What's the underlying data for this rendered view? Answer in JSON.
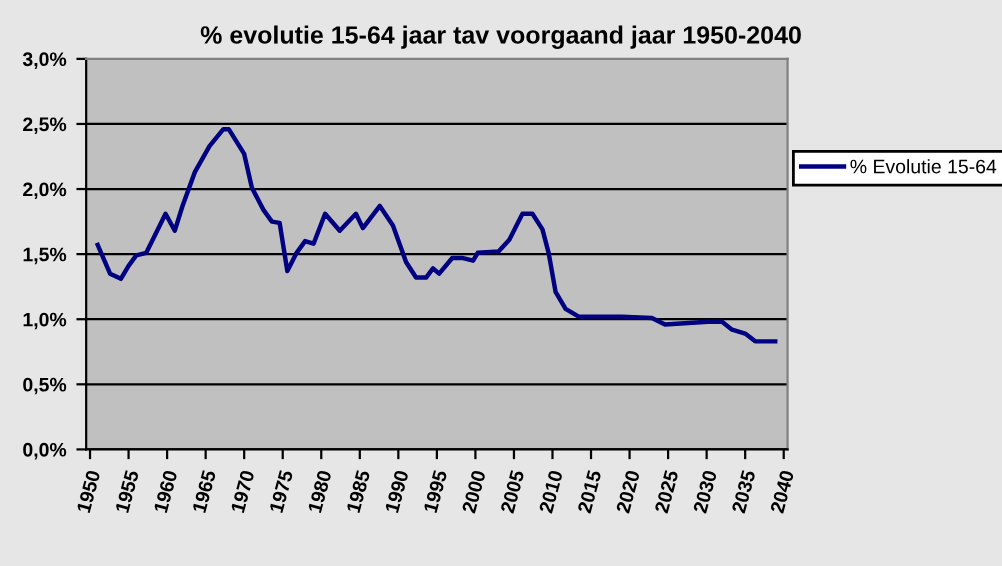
{
  "chart_data": {
    "type": "line",
    "title": "% evolutie 15-64 jaar tav voorgaand jaar 1950-2040",
    "x": [
      1951,
      1952.6,
      1954,
      1955,
      1956,
      1957.3,
      1959.8,
      1961,
      1962,
      1963.6,
      1965.5,
      1967.3,
      1968,
      1970,
      1971,
      1972.5,
      1973.6,
      1974.6,
      1975.6,
      1976.8,
      1977.9,
      1979,
      1980.5,
      1982.4,
      1984.5,
      1985.4,
      1987.6,
      1989.3,
      1991,
      1992.3,
      1993.6,
      1994.5,
      1995.3,
      1997,
      1998.4,
      1999.7,
      2000.3,
      2003,
      2004.4,
      2006.1,
      2007.4,
      2008.7,
      2009.5,
      2010.4,
      2011.7,
      2013.4,
      2019,
      2022.9,
      2024.6,
      2030.2,
      2032,
      2033.3,
      2035,
      2036.3,
      2038.9
    ],
    "series": [
      {
        "name": "% Evolutie 15-64",
        "color": "#000080",
        "values": [
          1.57,
          1.35,
          1.31,
          1.41,
          1.49,
          1.51,
          1.81,
          1.68,
          1.87,
          2.13,
          2.33,
          2.46,
          2.46,
          2.27,
          2.01,
          1.84,
          1.75,
          1.74,
          1.37,
          1.51,
          1.6,
          1.58,
          1.81,
          1.68,
          1.81,
          1.7,
          1.87,
          1.72,
          1.44,
          1.32,
          1.32,
          1.39,
          1.35,
          1.47,
          1.47,
          1.45,
          1.51,
          1.52,
          1.61,
          1.81,
          1.81,
          1.69,
          1.51,
          1.21,
          1.08,
          1.02,
          1.02,
          1.01,
          0.96,
          0.98,
          0.98,
          0.92,
          0.89,
          0.83,
          0.83
        ]
      }
    ],
    "xlim": [
      1949.5,
      2040.5
    ],
    "xticks": [
      1950,
      1955,
      1960,
      1965,
      1970,
      1975,
      1980,
      1985,
      1990,
      1995,
      2000,
      2005,
      2010,
      2015,
      2020,
      2025,
      2030,
      2035,
      2040
    ],
    "ylim": [
      0,
      3.0
    ],
    "yticks": [
      {
        "value": 0,
        "label": "0,0%"
      },
      {
        "value": 0.5,
        "label": "0,5%"
      },
      {
        "value": 1.0,
        "label": "1,0%"
      },
      {
        "value": 1.5,
        "label": "1,5%"
      },
      {
        "value": 2.0,
        "label": "2,0%"
      },
      {
        "value": 2.5,
        "label": "2,5%"
      },
      {
        "value": 3.0,
        "label": "3,0%"
      }
    ],
    "grid": "y",
    "legend": "right",
    "marker": "none",
    "line_style": "solid"
  }
}
